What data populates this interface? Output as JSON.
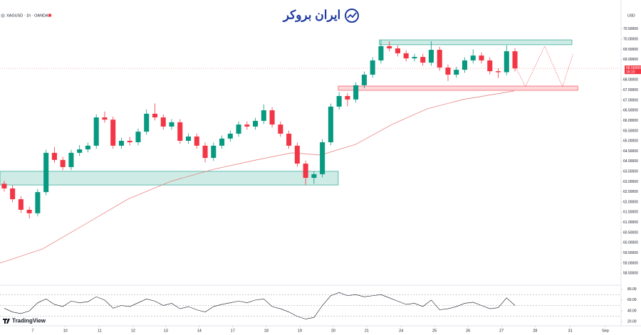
{
  "branding": {
    "logo_text": "ایران بروکر",
    "platform": "TradingView"
  },
  "chart_data": [
    {
      "type": "candlestick",
      "title": "XAGUSD · 1h · OANDA",
      "currency": "USD",
      "x": [
        0,
        1,
        2,
        3,
        4,
        5,
        6,
        7,
        8,
        9,
        10,
        11,
        12,
        13,
        14,
        15,
        16,
        17,
        18,
        19,
        20,
        21,
        22,
        23,
        24,
        25,
        26,
        27,
        28,
        29,
        30,
        31,
        32,
        33,
        34,
        35,
        36,
        37,
        38,
        39,
        40,
        41,
        42,
        43,
        44,
        45,
        46,
        47,
        48,
        49,
        50,
        51,
        52,
        53,
        54,
        55,
        56,
        57,
        58,
        59,
        60,
        61
      ],
      "open": [
        62.9,
        62.67,
        62.14,
        61.62,
        61.45,
        62.49,
        64.42,
        64.07,
        63.72,
        64.42,
        64.59,
        64.77,
        66.16,
        66.05,
        64.77,
        65.01,
        64.94,
        65.46,
        66.34,
        66.16,
        65.71,
        65.92,
        65.01,
        65.22,
        64.77,
        64.17,
        64.77,
        65.12,
        65.36,
        65.81,
        65.71,
        65.99,
        66.51,
        65.81,
        65.36,
        64.77,
        63.89,
        63.19,
        63.37,
        64.94,
        66.69,
        67.21,
        67.04,
        67.74,
        68.26,
        68.96,
        69.66,
        69.55,
        69.31,
        69.06,
        69.13,
        68.85,
        69.48,
        68.61,
        68.26,
        68.5,
        68.96,
        69.2,
        68.96,
        68.43,
        68.38,
        69.41
      ],
      "high": [
        63.05,
        62.82,
        62.29,
        61.77,
        62.64,
        64.57,
        64.7,
        64.22,
        64.57,
        64.8,
        64.92,
        66.31,
        66.45,
        66.2,
        65.16,
        65.2,
        65.61,
        66.55,
        66.85,
        66.31,
        66.07,
        66.07,
        65.37,
        65.37,
        64.92,
        64.92,
        65.27,
        65.51,
        65.96,
        65.96,
        66.14,
        66.8,
        66.66,
        65.96,
        65.51,
        64.92,
        64.04,
        63.52,
        65.09,
        66.84,
        67.4,
        67.36,
        67.89,
        68.41,
        69.11,
        69.95,
        69.9,
        69.7,
        69.46,
        69.28,
        69.28,
        69.9,
        69.63,
        68.76,
        68.65,
        69.11,
        69.5,
        69.35,
        69.11,
        68.58,
        69.7,
        69.56
      ],
      "low": [
        62.52,
        61.99,
        61.47,
        61.2,
        61.3,
        62.34,
        63.92,
        63.57,
        63.57,
        64.27,
        64.44,
        64.62,
        65.9,
        64.62,
        64.62,
        64.79,
        64.79,
        65.31,
        66.01,
        65.56,
        65.56,
        64.86,
        64.86,
        64.62,
        63.95,
        64.02,
        64.62,
        64.97,
        65.21,
        65.56,
        65.56,
        65.84,
        65.66,
        65.21,
        64.62,
        63.74,
        62.85,
        62.9,
        63.22,
        64.79,
        66.54,
        66.7,
        66.89,
        67.59,
        68.11,
        68.81,
        69.4,
        69.16,
        68.91,
        68.91,
        68.7,
        68.7,
        68.46,
        67.95,
        68.11,
        68.35,
        68.81,
        68.81,
        68.28,
        68.1,
        68.23,
        68.42
      ],
      "close": [
        62.67,
        62.14,
        61.62,
        61.45,
        62.49,
        64.42,
        64.07,
        63.72,
        64.42,
        64.59,
        64.77,
        66.16,
        66.05,
        64.77,
        65.01,
        64.94,
        65.46,
        66.34,
        66.16,
        65.71,
        65.92,
        65.01,
        65.22,
        64.77,
        64.17,
        64.77,
        65.12,
        65.36,
        65.81,
        65.71,
        65.99,
        66.51,
        65.81,
        65.36,
        64.77,
        63.89,
        63.19,
        63.37,
        64.94,
        66.69,
        67.21,
        67.04,
        67.74,
        68.26,
        68.96,
        69.66,
        69.55,
        69.31,
        69.06,
        69.13,
        68.85,
        69.48,
        68.61,
        68.26,
        68.5,
        68.96,
        69.2,
        68.96,
        68.43,
        68.38,
        69.41,
        68.57
      ],
      "colors": {
        "up": "#089981",
        "down": "#f23645"
      },
      "xlim": [
        0,
        74
      ],
      "xticks": [
        {
          "value": 3.9,
          "label": "7"
        },
        {
          "value": 7.8,
          "label": "10"
        },
        {
          "value": 11.9,
          "label": "11"
        },
        {
          "value": 15.9,
          "label": "12"
        },
        {
          "value": 19.8,
          "label": "13"
        },
        {
          "value": 23.8,
          "label": "14"
        },
        {
          "value": 27.8,
          "label": "17"
        },
        {
          "value": 31.8,
          "label": "18"
        },
        {
          "value": 35.8,
          "label": "19"
        },
        {
          "value": 39.8,
          "label": "20"
        },
        {
          "value": 43.8,
          "label": "21"
        },
        {
          "value": 47.9,
          "label": "24"
        },
        {
          "value": 51.9,
          "label": "25"
        },
        {
          "value": 55.9,
          "label": "26"
        },
        {
          "value": 59.9,
          "label": "27"
        },
        {
          "value": 63.9,
          "label": "28"
        },
        {
          "value": 68.1,
          "label": "31"
        },
        {
          "value": 72.3,
          "label": "Sep"
        }
      ],
      "ylim": [
        57.95,
        70.95
      ],
      "yticks": [
        {
          "value": 58.5,
          "label": "58.50000"
        },
        {
          "value": 59,
          "label": "59.00000"
        },
        {
          "value": 59.5,
          "label": "59.50000"
        },
        {
          "value": 60,
          "label": "60.00000"
        },
        {
          "value": 60.5,
          "label": "60.50000"
        },
        {
          "value": 61,
          "label": "61.00000"
        },
        {
          "value": 61.5,
          "label": "61.50000"
        },
        {
          "value": 62,
          "label": "62.00000"
        },
        {
          "value": 62.5,
          "label": "62.50000"
        },
        {
          "value": 63,
          "label": "63.00000"
        },
        {
          "value": 63.5,
          "label": "63.50000"
        },
        {
          "value": 64,
          "label": "64.00000"
        },
        {
          "value": 64.5,
          "label": "64.50000"
        },
        {
          "value": 65,
          "label": "65.00000"
        },
        {
          "value": 65.5,
          "label": "65.50000"
        },
        {
          "value": 66,
          "label": "66.00000"
        },
        {
          "value": 66.5,
          "label": "66.50000"
        },
        {
          "value": 67,
          "label": "67.00000"
        },
        {
          "value": 67.5,
          "label": "67.50000"
        },
        {
          "value": 68,
          "label": "68.00000"
        },
        {
          "value": 69,
          "label": "69.00000"
        },
        {
          "value": 69.5,
          "label": "69.50000"
        },
        {
          "value": 70,
          "label": "70.00000"
        },
        {
          "value": 70.5,
          "label": "70.50000"
        }
      ],
      "grid": false,
      "moving_average": {
        "color": "#e57373",
        "x": [
          0,
          5.1,
          10.2,
          15.3,
          20.4,
          25.5,
          30.6,
          34.9,
          38.3,
          42.5,
          46.8,
          51.0,
          55.3,
          61.4
        ],
        "values": [
          59.0,
          59.7,
          60.92,
          62.15,
          63.02,
          63.61,
          64.07,
          64.42,
          64.31,
          64.84,
          65.81,
          66.58,
          67.04,
          67.46
        ]
      },
      "zones": [
        {
          "color": "#089981",
          "x": [
            0,
            40.4
          ],
          "y": [
            62.84,
            63.51
          ]
        },
        {
          "color": "#089981",
          "x": [
            45.3,
            68.3
          ],
          "y": [
            69.73,
            69.97
          ]
        },
        {
          "color": "#f23645",
          "x": [
            40.4,
            69.0
          ],
          "y": [
            67.49,
            67.7
          ]
        }
      ],
      "projection": {
        "color": "#f23645",
        "x": [
          61.4,
          62.75,
          65.05,
          67.18,
          68.45
        ],
        "values": [
          68.78,
          67.67,
          69.66,
          67.67,
          69.31
        ]
      },
      "last_price": {
        "value": 68.5699,
        "label": "68.56990"
      },
      "countdown": "16:10"
    },
    {
      "type": "line",
      "color": "#131722",
      "values": [
        45,
        38,
        35,
        40,
        55,
        62,
        52,
        48,
        58,
        55,
        57,
        66,
        60,
        45,
        50,
        48,
        55,
        62,
        58,
        50,
        54,
        44,
        48,
        42,
        38,
        48,
        52,
        55,
        58,
        55,
        60,
        62,
        48,
        44,
        38,
        30,
        25,
        28,
        50,
        68,
        74,
        68,
        70,
        66,
        68,
        70,
        64,
        58,
        52,
        54,
        48,
        60,
        42,
        44,
        48,
        54,
        56,
        50,
        44,
        46,
        64,
        50
      ],
      "levels": [
        70,
        50,
        30
      ],
      "ylim": [
        14,
        86
      ],
      "yticks": [
        {
          "value": 80,
          "label": "80.00"
        },
        {
          "value": 60,
          "label": "60.00"
        },
        {
          "value": 40,
          "label": "40.00"
        },
        {
          "value": 20,
          "label": "20.00"
        }
      ]
    }
  ]
}
